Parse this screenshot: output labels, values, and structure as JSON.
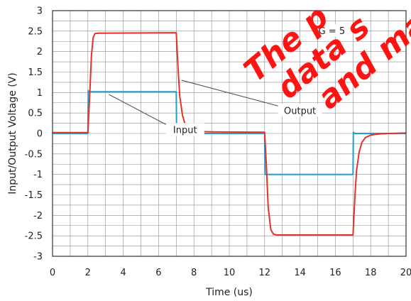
{
  "chart_data": {
    "type": "line",
    "title": "",
    "xlabel": "Time (us)",
    "ylabel": "Input/Output Voltage (V)",
    "xlim": [
      0,
      20
    ],
    "ylim": [
      -3,
      3
    ],
    "xticks": [
      0,
      2,
      4,
      6,
      8,
      10,
      12,
      14,
      16,
      18,
      20
    ],
    "yticks": [
      3,
      2.5,
      2,
      1.5,
      1,
      0.5,
      0,
      -0.5,
      -1,
      -1.5,
      -2,
      -2.5,
      -3
    ],
    "ytick_labels": [
      "3",
      "2.5",
      "2",
      "1.5",
      "1",
      "0.5",
      "0",
      "-0.5",
      "-1",
      "-1.5",
      "-2",
      "-2.5",
      "-3"
    ],
    "grid": true,
    "series": [
      {
        "name": "Input",
        "color": "#1e9fd0",
        "x": [
          0,
          2.0,
          2.02,
          2.05,
          7.0,
          7.02,
          12.0,
          12.02,
          17.0,
          17.02,
          17.1,
          20
        ],
        "y": [
          0,
          0,
          1.05,
          1.02,
          1.02,
          0,
          0,
          -1.0,
          -1.0,
          0.03,
          0,
          0
        ]
      },
      {
        "name": "Output",
        "color": "#e8302a",
        "x": [
          0,
          2.0,
          2.1,
          2.2,
          2.3,
          2.4,
          2.6,
          7.0,
          7.1,
          7.2,
          7.35,
          7.5,
          7.7,
          8.0,
          9.0,
          12.0,
          12.1,
          12.2,
          12.35,
          12.5,
          12.7,
          17.0,
          17.1,
          17.2,
          17.35,
          17.5,
          17.7,
          18.0,
          18.5,
          19.0,
          20
        ],
        "y": [
          0.02,
          0.02,
          0.9,
          1.9,
          2.35,
          2.44,
          2.45,
          2.46,
          1.6,
          0.9,
          0.45,
          0.22,
          0.1,
          0.05,
          0.04,
          0.03,
          -0.8,
          -1.8,
          -2.35,
          -2.46,
          -2.48,
          -2.48,
          -1.6,
          -0.9,
          -0.45,
          -0.22,
          -0.1,
          -0.04,
          -0.01,
          0.0,
          0.01
        ]
      }
    ],
    "annotations": [
      {
        "text": "Input",
        "x": 7.5,
        "y": 0.08,
        "target_x": 3.2,
        "target_y": 0.95
      },
      {
        "text": "Output",
        "x": 14.0,
        "y": 0.55,
        "target_x": 7.3,
        "target_y": 1.3
      },
      {
        "text": "G = 5",
        "x": 15.8,
        "y": 2.5
      }
    ]
  },
  "watermark": [
    "The p",
    "data s",
    "and may"
  ]
}
